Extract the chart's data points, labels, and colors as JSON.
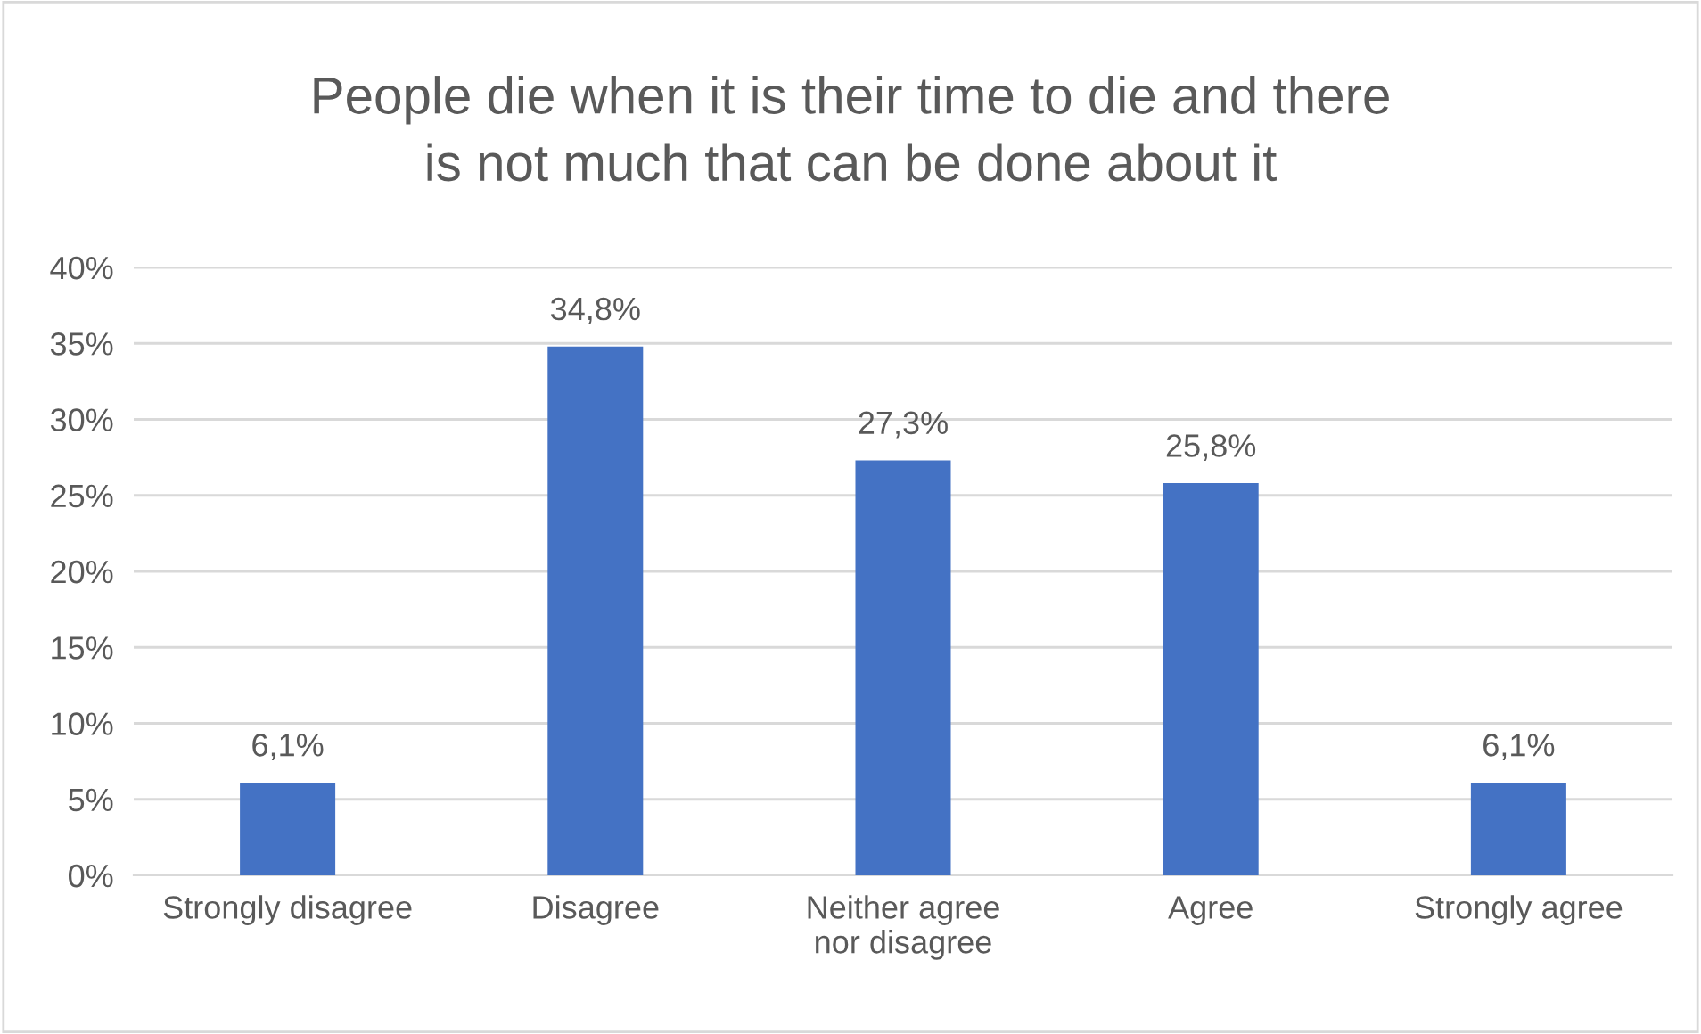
{
  "chart_data": {
    "type": "bar",
    "title": "People die when it is their time to die and there\nis not much that can be done about it",
    "categories": [
      "Strongly disagree",
      "Disagree",
      "Neither agree\nnor disagree",
      "Agree",
      "Strongly agree"
    ],
    "values": [
      6.1,
      34.8,
      27.3,
      25.8,
      6.1
    ],
    "value_labels": [
      "6,1%",
      "34,8%",
      "27,3%",
      "25,8%",
      "6,1%"
    ],
    "color": "#4472c4",
    "ylim": [
      0,
      40
    ],
    "yticks": [
      {
        "value": 0,
        "label": "0%"
      },
      {
        "value": 5,
        "label": "5%"
      },
      {
        "value": 10,
        "label": "10%"
      },
      {
        "value": 15,
        "label": "15%"
      },
      {
        "value": 20,
        "label": "20%"
      },
      {
        "value": 25,
        "label": "25%"
      },
      {
        "value": 30,
        "label": "30%"
      },
      {
        "value": 35,
        "label": "35%"
      },
      {
        "value": 40,
        "label": "40%"
      }
    ],
    "grid": "y",
    "legend": false
  }
}
